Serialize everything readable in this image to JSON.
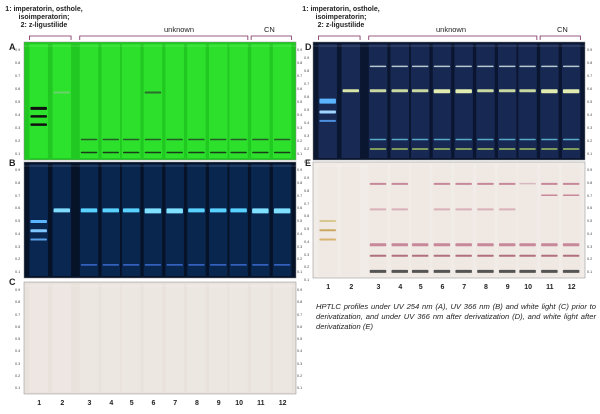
{
  "header_left": {
    "line1": "1: imperatorin, osthole,",
    "line2": "isoimperatorin;",
    "line3": "2: z-ligustilide"
  },
  "header_right": {
    "line1": "1: imperatorin, osthole,",
    "line2": "isoimperatorin;",
    "line3": "2: z-ligustilide"
  },
  "groups": {
    "unknown": "unknown",
    "cn": "CN"
  },
  "plates": {
    "A": "A",
    "B": "B",
    "C": "C",
    "D": "D",
    "E": "E"
  },
  "lane_numbers": [
    "1",
    "2",
    "3",
    "4",
    "5",
    "6",
    "7",
    "8",
    "9",
    "10",
    "11",
    "12"
  ],
  "rf_ticks": [
    "0.9",
    "0.8",
    "0.7",
    "0.6",
    "0.5",
    "0.4",
    "0.3",
    "0.2",
    "0.1"
  ],
  "caption": {
    "text": "HPTLC profiles under UV 254 nm (A), UV 366 nm (B) and white light (C) prior to derivatization, and under UV 366 nm after derivatization (D), and white light after derivatization (E)"
  }
}
